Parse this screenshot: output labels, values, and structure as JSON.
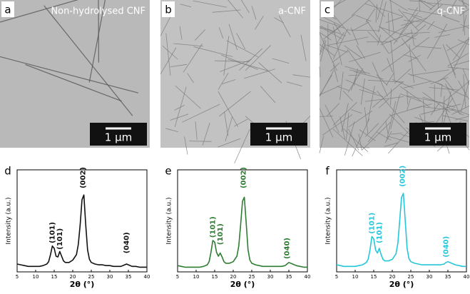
{
  "images": [
    {
      "letter": "a",
      "label": "Non-hydrolysed CNF",
      "scale": "1 µm"
    },
    {
      "letter": "b",
      "label": "a-CNF",
      "scale": "1 µm"
    },
    {
      "letter": "c",
      "label": "q-CNF",
      "scale": "1 µm"
    }
  ],
  "chart_data": [
    {
      "type": "line",
      "panel": "d",
      "xlabel": "2θ (°)",
      "ylabel": "Intensity (a.u.)",
      "color": "#111111",
      "x": [
        5,
        6,
        7,
        8,
        9,
        10,
        11,
        12,
        13,
        13.5,
        14,
        14.5,
        15,
        15.5,
        16,
        16.5,
        17,
        17.5,
        18,
        19,
        20,
        21,
        21.5,
        22,
        22.5,
        23,
        23.5,
        24,
        24.5,
        25,
        26,
        27,
        28,
        29,
        30,
        31,
        32,
        33,
        34,
        34.5,
        35,
        36,
        37,
        38,
        39,
        40
      ],
      "values": [
        10,
        9,
        8,
        7,
        7,
        7,
        7,
        8,
        10,
        13,
        22,
        33,
        30,
        20,
        19,
        26,
        20,
        14,
        12,
        12,
        15,
        22,
        35,
        60,
        92,
        98,
        60,
        28,
        16,
        12,
        10,
        9,
        9,
        8,
        8,
        7,
        7,
        7,
        9,
        10,
        9,
        7,
        7,
        6,
        6,
        6
      ],
      "xlim": [
        5,
        40
      ],
      "ylim": [
        0,
        130
      ],
      "xticks": [
        5,
        10,
        15,
        20,
        25,
        30,
        35,
        40
      ],
      "annotations": [
        {
          "text": "(101)",
          "x": 14.5,
          "y": 50
        },
        {
          "text": "(101)",
          "x": 16.5,
          "y": 42
        },
        {
          "text": "(002)",
          "x": 22.8,
          "y": 120
        },
        {
          "text": "(040)",
          "x": 34.5,
          "y": 37
        }
      ]
    },
    {
      "type": "line",
      "panel": "e",
      "xlabel": "2θ (°)",
      "ylabel": "Intensity (a.u.)",
      "color": "#2e7d32",
      "x": [
        5,
        6,
        7,
        8,
        9,
        10,
        11,
        12,
        13,
        13.5,
        14,
        14.5,
        15,
        15.5,
        16,
        16.5,
        17,
        17.5,
        18,
        19,
        20,
        21,
        21.5,
        22,
        22.5,
        23,
        23.5,
        24,
        24.5,
        25,
        26,
        27,
        28,
        29,
        30,
        31,
        32,
        33,
        34,
        34.5,
        35,
        36,
        37,
        38,
        39,
        40
      ],
      "values": [
        8,
        7,
        6,
        6,
        6,
        6,
        6,
        7,
        9,
        13,
        25,
        40,
        38,
        25,
        20,
        24,
        19,
        13,
        11,
        11,
        13,
        20,
        33,
        60,
        90,
        95,
        62,
        28,
        15,
        11,
        9,
        8,
        7,
        7,
        7,
        7,
        7,
        7,
        8,
        10,
        12,
        10,
        8,
        7,
        6,
        6
      ],
      "xlim": [
        5,
        40
      ],
      "ylim": [
        0,
        130
      ],
      "xticks": [
        5,
        10,
        15,
        20,
        25,
        30,
        35,
        40
      ],
      "annotations": [
        {
          "text": "(101)",
          "x": 14.5,
          "y": 57
        },
        {
          "text": "(101)",
          "x": 16.5,
          "y": 48
        },
        {
          "text": "(002)",
          "x": 22.8,
          "y": 120
        },
        {
          "text": "(040)",
          "x": 34.5,
          "y": 30
        }
      ]
    },
    {
      "type": "line",
      "panel": "f",
      "xlabel": "2θ (°)",
      "ylabel": "Intensity (a.u.)",
      "color": "#26c6da",
      "x": [
        5,
        6,
        7,
        8,
        9,
        10,
        11,
        12,
        13,
        13.5,
        14,
        14.5,
        15,
        15.5,
        16,
        16.5,
        17,
        17.5,
        18,
        19,
        20,
        21,
        21.5,
        22,
        22.5,
        23,
        23.5,
        24,
        24.5,
        25,
        26,
        27,
        28,
        29,
        30,
        31,
        32,
        33,
        34,
        34.5,
        35,
        36,
        37,
        38,
        39,
        40
      ],
      "values": [
        9,
        8,
        7,
        7,
        7,
        7,
        8,
        9,
        12,
        16,
        28,
        45,
        42,
        28,
        24,
        30,
        22,
        16,
        14,
        14,
        16,
        23,
        36,
        65,
        95,
        100,
        65,
        30,
        17,
        13,
        11,
        10,
        9,
        9,
        9,
        9,
        9,
        9,
        10,
        12,
        13,
        11,
        9,
        8,
        7,
        7
      ],
      "xlim": [
        5,
        40
      ],
      "ylim": [
        0,
        130
      ],
      "xticks": [
        5,
        10,
        15,
        20,
        25,
        30,
        35,
        40
      ],
      "annotations": [
        {
          "text": "(101)",
          "x": 14.5,
          "y": 62
        },
        {
          "text": "(101)",
          "x": 16.5,
          "y": 50
        },
        {
          "text": "(002)",
          "x": 22.8,
          "y": 122
        },
        {
          "text": "(040)",
          "x": 34.5,
          "y": 32
        }
      ]
    }
  ]
}
